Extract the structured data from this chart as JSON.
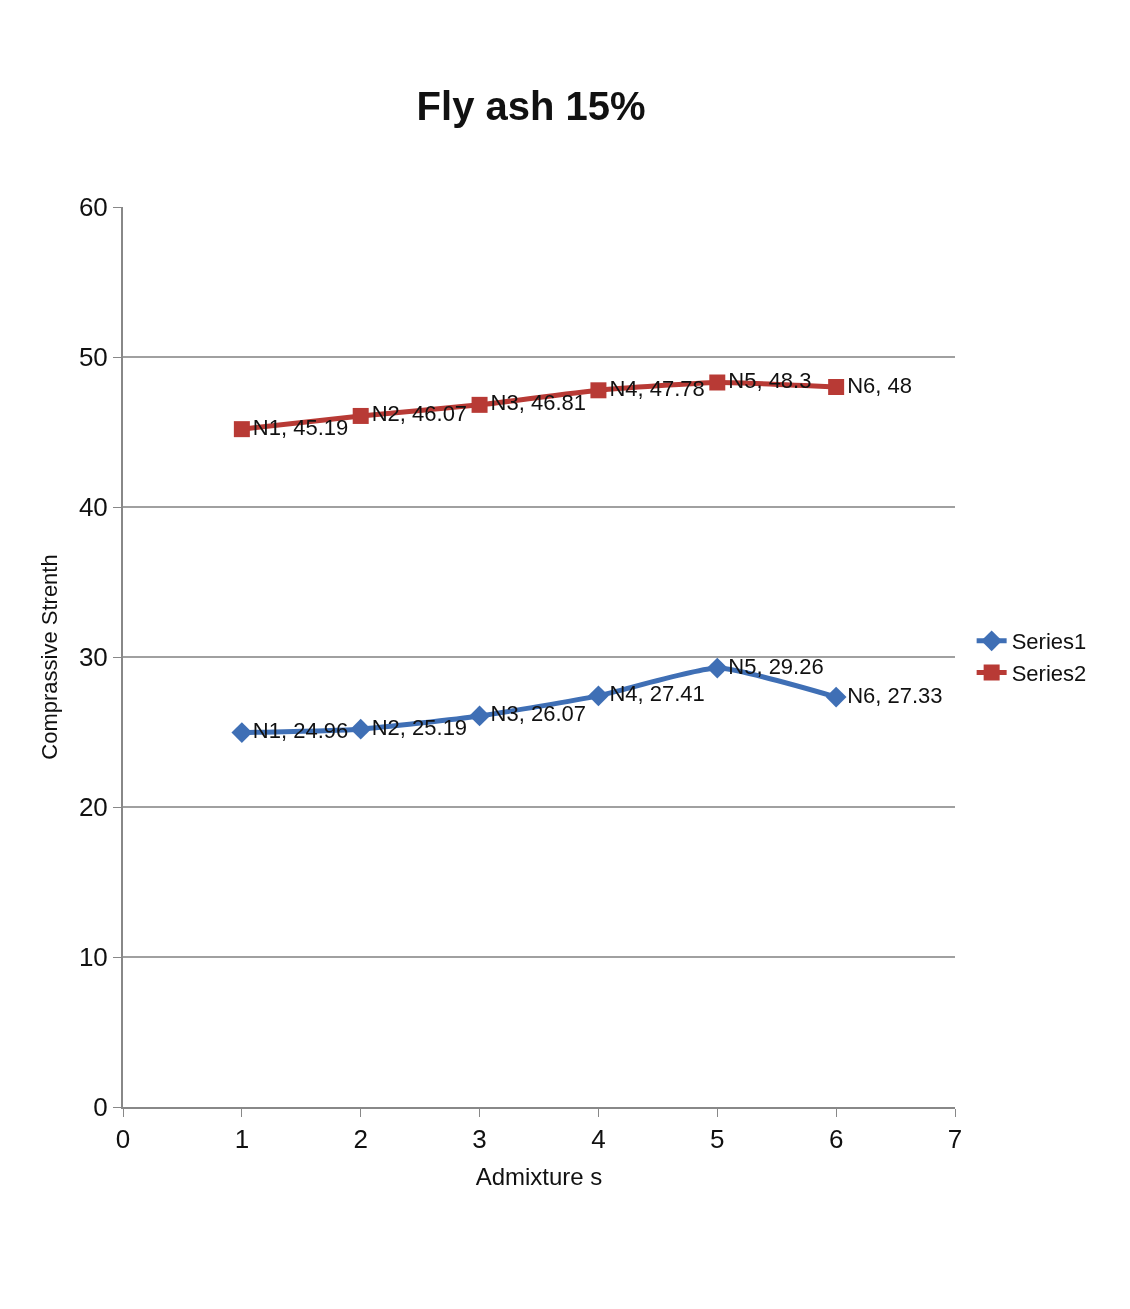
{
  "chart_data": {
    "type": "line",
    "title": "Fly ash 15%",
    "xlabel": "Admixture s",
    "ylabel": "Comprassive Strenth",
    "x": [
      1,
      2,
      3,
      4,
      5,
      6
    ],
    "series": [
      {
        "name": "Series1",
        "color": "#3f6fb5",
        "marker": "diamond",
        "values": [
          24.96,
          25.19,
          26.07,
          27.41,
          29.26,
          27.33
        ],
        "value_labels": [
          "N1, 24.96",
          "N2, 25.19",
          "N3, 26.07",
          "N4, 27.41",
          "N5, 29.26",
          "N6, 27.33"
        ]
      },
      {
        "name": "Series2",
        "color": "#b83a35",
        "marker": "square",
        "values": [
          45.19,
          46.07,
          46.81,
          47.78,
          48.3,
          48
        ],
        "value_labels": [
          "N1, 45.19",
          "N2, 46.07",
          "N3, 46.81",
          "N4, 47.78",
          "N5, 48.3",
          "N6, 48"
        ]
      }
    ],
    "xlim": [
      0,
      7
    ],
    "xticks": [
      0,
      1,
      2,
      3,
      4,
      5,
      6,
      7
    ],
    "ylim": [
      0,
      60
    ],
    "yticks": [
      0,
      10,
      20,
      30,
      40,
      50,
      60
    ],
    "grid": "y",
    "legend": "right",
    "line_style": "solid"
  }
}
